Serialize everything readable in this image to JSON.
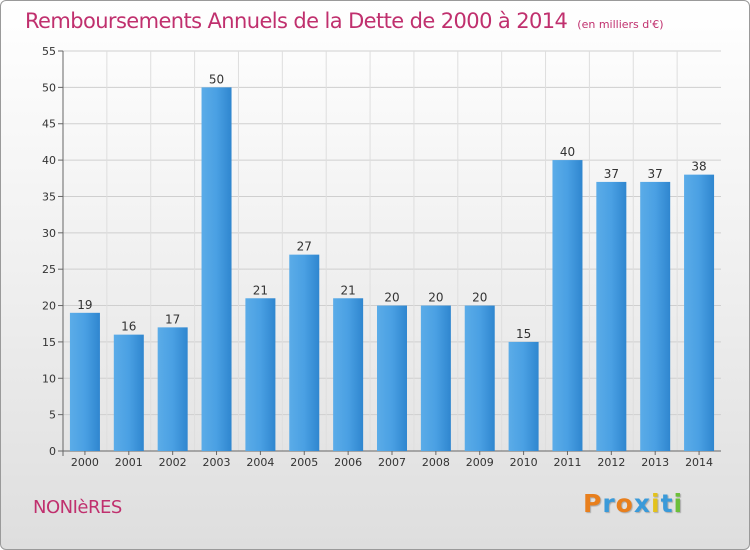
{
  "header": {
    "title": "Remboursements Annuels de la Dette de 2000 à 2014",
    "subtitle": "(en milliers d'€)"
  },
  "footer": {
    "commune": "NONIèRES",
    "logo_text": "Proxiti",
    "logo_colors": [
      "#e87f1d",
      "#3a9ad9",
      "#e87f1d",
      "#3a9ad9",
      "#e3c21c",
      "#3a9ad9",
      "#6cbf3a"
    ]
  },
  "chart_data": {
    "type": "bar",
    "title": "Remboursements Annuels de la Dette de 2000 à 2014",
    "subtitle": "(en milliers d'€)",
    "categories": [
      "2000",
      "2001",
      "2002",
      "2003",
      "2004",
      "2005",
      "2006",
      "2007",
      "2008",
      "2009",
      "2010",
      "2011",
      "2012",
      "2013",
      "2014"
    ],
    "values": [
      19,
      16,
      17,
      50,
      21,
      27,
      21,
      20,
      20,
      20,
      15,
      40,
      37,
      37,
      38
    ],
    "ylim": [
      0,
      55
    ],
    "yticks": [
      0,
      5,
      10,
      15,
      20,
      25,
      30,
      35,
      40,
      45,
      50,
      55
    ],
    "grid": true,
    "bar_color": "#3f93d8",
    "legend": "none"
  }
}
